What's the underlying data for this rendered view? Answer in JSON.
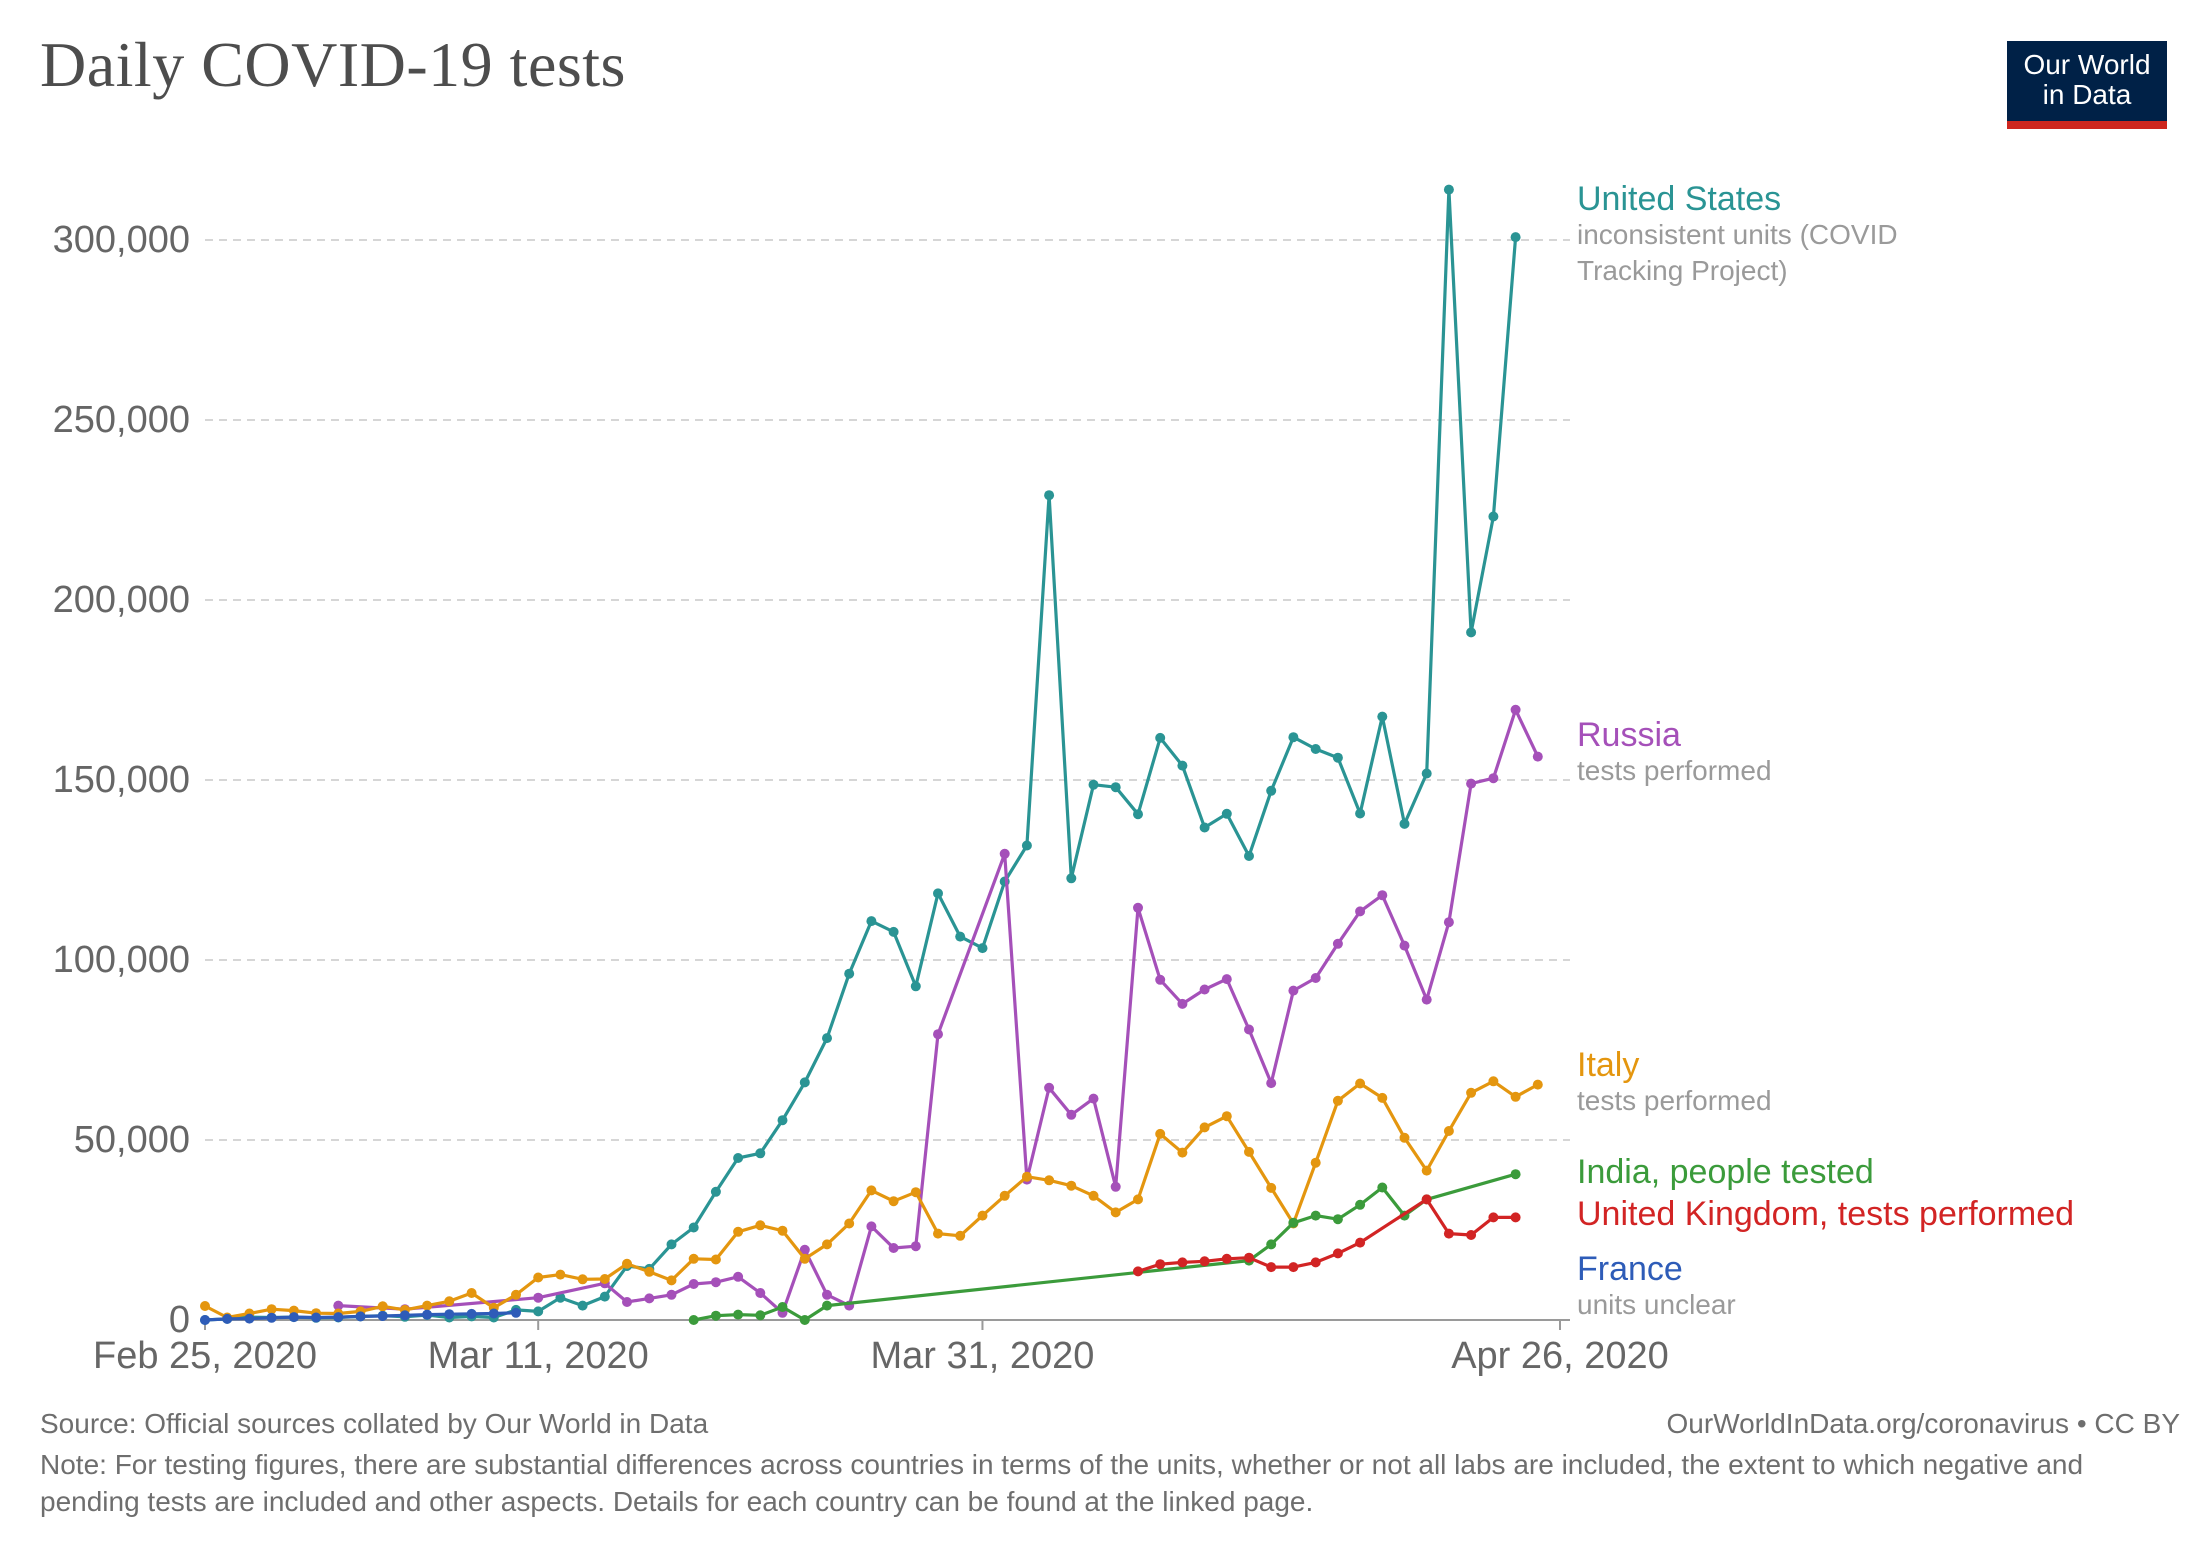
{
  "title": "Daily COVID-19 tests",
  "logo": {
    "line1": "Our World",
    "line2": "in Data"
  },
  "source": "Source: Official sources collated by Our World in Data",
  "license": "OurWorldInData.org/coronavirus • CC BY",
  "note": "Note: For testing figures, there are substantial differences across countries in terms of the units, whether or not all labs are included, the extent to which negative and pending tests are included and other aspects. Details for each country can be found at the linked page.",
  "colors": {
    "united_states": "#2a9494",
    "russia": "#a550b9",
    "italy": "#e4960f",
    "india": "#3b9b3b",
    "united_kingdom": "#d22424",
    "france": "#2e5cb8",
    "logo_bg": "#002147",
    "logo_accent": "#ce261e"
  },
  "chart_data": {
    "type": "line",
    "title": "Daily COVID-19 tests",
    "x_axis": {
      "start": "2020-02-25",
      "end": "2020-04-26",
      "ticks": [
        "Feb 25, 2020",
        "Mar 11, 2020",
        "Mar 31, 2020",
        "Apr 26, 2020"
      ],
      "tick_dates": [
        "2020-02-25",
        "2020-03-11",
        "2020-03-31",
        "2020-04-26"
      ]
    },
    "y_axis": {
      "ylim": [
        0,
        320000
      ],
      "ticks": [
        0,
        50000,
        100000,
        150000,
        200000,
        250000,
        300000
      ],
      "tick_labels": [
        "0",
        "50,000",
        "100,000",
        "150,000",
        "200,000",
        "250,000",
        "300,000"
      ],
      "grid": true
    },
    "legend": "inline-right",
    "series": [
      {
        "name": "United States",
        "sublabel": "inconsistent units (COVID Tracking Project)",
        "color": "#2a9494",
        "points": [
          [
            "2020-02-25",
            0
          ],
          [
            "2020-02-26",
            300
          ],
          [
            "2020-02-27",
            800
          ],
          [
            "2020-02-28",
            700
          ],
          [
            "2020-02-29",
            800
          ],
          [
            "2020-03-01",
            600
          ],
          [
            "2020-03-02",
            700
          ],
          [
            "2020-03-03",
            1000
          ],
          [
            "2020-03-04",
            1200
          ],
          [
            "2020-03-05",
            900
          ],
          [
            "2020-03-06",
            1400
          ],
          [
            "2020-03-07",
            700
          ],
          [
            "2020-03-08",
            1000
          ],
          [
            "2020-03-09",
            700
          ],
          [
            "2020-03-10",
            2800
          ],
          [
            "2020-03-11",
            2400
          ],
          [
            "2020-03-12",
            6200
          ],
          [
            "2020-03-13",
            4000
          ],
          [
            "2020-03-14",
            6500
          ],
          [
            "2020-03-15",
            15000
          ],
          [
            "2020-03-16",
            14200
          ],
          [
            "2020-03-17",
            21000
          ],
          [
            "2020-03-18",
            25700
          ],
          [
            "2020-03-19",
            35600
          ],
          [
            "2020-03-20",
            45000
          ],
          [
            "2020-03-21",
            46300
          ],
          [
            "2020-03-22",
            55500
          ],
          [
            "2020-03-23",
            66000
          ],
          [
            "2020-03-24",
            78300
          ],
          [
            "2020-03-25",
            96200
          ],
          [
            "2020-03-26",
            110800
          ],
          [
            "2020-03-27",
            107800
          ],
          [
            "2020-03-28",
            92700
          ],
          [
            "2020-03-29",
            118500
          ],
          [
            "2020-03-30",
            106500
          ],
          [
            "2020-03-31",
            103300
          ],
          [
            "2020-04-01",
            121800
          ],
          [
            "2020-04-02",
            131800
          ],
          [
            "2020-04-03",
            229100
          ],
          [
            "2020-04-04",
            122700
          ],
          [
            "2020-04-05",
            148700
          ],
          [
            "2020-04-06",
            148000
          ],
          [
            "2020-04-07",
            140500
          ],
          [
            "2020-04-08",
            161700
          ],
          [
            "2020-04-09",
            154000
          ],
          [
            "2020-04-10",
            136800
          ],
          [
            "2020-04-11",
            140600
          ],
          [
            "2020-04-12",
            128900
          ],
          [
            "2020-04-13",
            147000
          ],
          [
            "2020-04-14",
            161900
          ],
          [
            "2020-04-15",
            158600
          ],
          [
            "2020-04-16",
            156200
          ],
          [
            "2020-04-17",
            140700
          ],
          [
            "2020-04-18",
            167600
          ],
          [
            "2020-04-19",
            137800
          ],
          [
            "2020-04-20",
            151800
          ],
          [
            "2020-04-21",
            314000
          ],
          [
            "2020-04-22",
            191000
          ],
          [
            "2020-04-23",
            223200
          ],
          [
            "2020-04-24",
            300800
          ]
        ]
      },
      {
        "name": "Russia",
        "sublabel": "tests performed",
        "color": "#a550b9",
        "points": [
          [
            "2020-03-02",
            4000
          ],
          [
            "2020-03-05",
            3000
          ],
          [
            "2020-03-11",
            6200
          ],
          [
            "2020-03-14",
            10200
          ],
          [
            "2020-03-15",
            5000
          ],
          [
            "2020-03-16",
            6000
          ],
          [
            "2020-03-17",
            7000
          ],
          [
            "2020-03-18",
            10000
          ],
          [
            "2020-03-19",
            10500
          ],
          [
            "2020-03-20",
            12000
          ],
          [
            "2020-03-21",
            7500
          ],
          [
            "2020-03-22",
            2000
          ],
          [
            "2020-03-23",
            19500
          ],
          [
            "2020-03-24",
            7000
          ],
          [
            "2020-03-25",
            4000
          ],
          [
            "2020-03-26",
            26000
          ],
          [
            "2020-03-27",
            20000
          ],
          [
            "2020-03-28",
            20500
          ],
          [
            "2020-03-29",
            79400
          ],
          [
            "2020-04-01",
            129500
          ],
          [
            "2020-04-02",
            39000
          ],
          [
            "2020-04-03",
            64500
          ],
          [
            "2020-04-04",
            57000
          ],
          [
            "2020-04-05",
            61500
          ],
          [
            "2020-04-06",
            37000
          ],
          [
            "2020-04-07",
            114500
          ],
          [
            "2020-04-08",
            94500
          ],
          [
            "2020-04-09",
            87800
          ],
          [
            "2020-04-10",
            91800
          ],
          [
            "2020-04-11",
            94700
          ],
          [
            "2020-04-12",
            80700
          ],
          [
            "2020-04-13",
            65800
          ],
          [
            "2020-04-14",
            91500
          ],
          [
            "2020-04-15",
            95000
          ],
          [
            "2020-04-16",
            104500
          ],
          [
            "2020-04-17",
            113500
          ],
          [
            "2020-04-18",
            118000
          ],
          [
            "2020-04-19",
            104000
          ],
          [
            "2020-04-20",
            89000
          ],
          [
            "2020-04-21",
            110500
          ],
          [
            "2020-04-22",
            149000
          ],
          [
            "2020-04-23",
            150500
          ],
          [
            "2020-04-24",
            169500
          ],
          [
            "2020-04-25",
            156500
          ]
        ]
      },
      {
        "name": "Italy",
        "sublabel": "tests performed",
        "color": "#e4960f",
        "points": [
          [
            "2020-02-25",
            3900
          ],
          [
            "2020-02-26",
            700
          ],
          [
            "2020-02-27",
            1800
          ],
          [
            "2020-02-28",
            3000
          ],
          [
            "2020-02-29",
            2600
          ],
          [
            "2020-03-01",
            1900
          ],
          [
            "2020-03-02",
            1800
          ],
          [
            "2020-03-03",
            2400
          ],
          [
            "2020-03-04",
            3800
          ],
          [
            "2020-03-05",
            2800
          ],
          [
            "2020-03-06",
            4000
          ],
          [
            "2020-03-07",
            5200
          ],
          [
            "2020-03-08",
            7500
          ],
          [
            "2020-03-09",
            3400
          ],
          [
            "2020-03-10",
            7000
          ],
          [
            "2020-03-11",
            11800
          ],
          [
            "2020-03-12",
            12600
          ],
          [
            "2020-03-13",
            11300
          ],
          [
            "2020-03-14",
            11400
          ],
          [
            "2020-03-15",
            15600
          ],
          [
            "2020-03-16",
            13400
          ],
          [
            "2020-03-17",
            11000
          ],
          [
            "2020-03-18",
            17000
          ],
          [
            "2020-03-19",
            16800
          ],
          [
            "2020-03-20",
            24500
          ],
          [
            "2020-03-21",
            26300
          ],
          [
            "2020-03-22",
            24800
          ],
          [
            "2020-03-23",
            17000
          ],
          [
            "2020-03-24",
            21000
          ],
          [
            "2020-03-25",
            26800
          ],
          [
            "2020-03-26",
            36000
          ],
          [
            "2020-03-27",
            33000
          ],
          [
            "2020-03-28",
            35500
          ],
          [
            "2020-03-29",
            24000
          ],
          [
            "2020-03-30",
            23400
          ],
          [
            "2020-03-31",
            29000
          ],
          [
            "2020-04-01",
            34500
          ],
          [
            "2020-04-02",
            39800
          ],
          [
            "2020-04-03",
            38800
          ],
          [
            "2020-04-04",
            37300
          ],
          [
            "2020-04-05",
            34500
          ],
          [
            "2020-04-06",
            29900
          ],
          [
            "2020-04-07",
            33500
          ],
          [
            "2020-04-08",
            51700
          ],
          [
            "2020-04-09",
            46500
          ],
          [
            "2020-04-10",
            53500
          ],
          [
            "2020-04-11",
            56600
          ],
          [
            "2020-04-12",
            46700
          ],
          [
            "2020-04-13",
            36700
          ],
          [
            "2020-04-14",
            26800
          ],
          [
            "2020-04-15",
            43700
          ],
          [
            "2020-04-16",
            60900
          ],
          [
            "2020-04-17",
            65700
          ],
          [
            "2020-04-18",
            61700
          ],
          [
            "2020-04-19",
            50600
          ],
          [
            "2020-04-20",
            41500
          ],
          [
            "2020-04-21",
            52500
          ],
          [
            "2020-04-22",
            63100
          ],
          [
            "2020-04-23",
            66300
          ],
          [
            "2020-04-24",
            62000
          ],
          [
            "2020-04-25",
            65400
          ]
        ]
      },
      {
        "name": "India, people tested",
        "color": "#3b9b3b",
        "points": [
          [
            "2020-03-18",
            0
          ],
          [
            "2020-03-19",
            1200
          ],
          [
            "2020-03-20",
            1500
          ],
          [
            "2020-03-21",
            1300
          ],
          [
            "2020-03-22",
            3600
          ],
          [
            "2020-03-23",
            0
          ],
          [
            "2020-03-24",
            4000
          ],
          [
            "2020-04-12",
            16500
          ],
          [
            "2020-04-13",
            21000
          ],
          [
            "2020-04-14",
            27000
          ],
          [
            "2020-04-15",
            29000
          ],
          [
            "2020-04-16",
            28000
          ],
          [
            "2020-04-17",
            32000
          ],
          [
            "2020-04-18",
            36800
          ],
          [
            "2020-04-19",
            29000
          ],
          [
            "2020-04-20",
            33500
          ],
          [
            "2020-04-24",
            40500
          ]
        ]
      },
      {
        "name": "United Kingdom, tests performed",
        "color": "#d22424",
        "points": [
          [
            "2020-04-07",
            13500
          ],
          [
            "2020-04-08",
            15500
          ],
          [
            "2020-04-09",
            16000
          ],
          [
            "2020-04-10",
            16300
          ],
          [
            "2020-04-11",
            17000
          ],
          [
            "2020-04-12",
            17300
          ],
          [
            "2020-04-13",
            14700
          ],
          [
            "2020-04-14",
            14700
          ],
          [
            "2020-04-15",
            16000
          ],
          [
            "2020-04-16",
            18500
          ],
          [
            "2020-04-17",
            21500
          ],
          [
            "2020-04-20",
            33500
          ],
          [
            "2020-04-21",
            24000
          ],
          [
            "2020-04-22",
            23600
          ],
          [
            "2020-04-23",
            28500
          ],
          [
            "2020-04-24",
            28500
          ]
        ]
      },
      {
        "name": "France",
        "sublabel": "units unclear",
        "color": "#2e5cb8",
        "points": [
          [
            "2020-02-25",
            0
          ],
          [
            "2020-02-26",
            300
          ],
          [
            "2020-02-27",
            400
          ],
          [
            "2020-02-28",
            600
          ],
          [
            "2020-02-29",
            800
          ],
          [
            "2020-03-01",
            700
          ],
          [
            "2020-03-02",
            800
          ],
          [
            "2020-03-03",
            1000
          ],
          [
            "2020-03-04",
            1100
          ],
          [
            "2020-03-05",
            1300
          ],
          [
            "2020-03-06",
            1500
          ],
          [
            "2020-03-07",
            1600
          ],
          [
            "2020-03-08",
            1700
          ],
          [
            "2020-03-09",
            1800
          ],
          [
            "2020-03-10",
            2000
          ]
        ]
      }
    ]
  }
}
